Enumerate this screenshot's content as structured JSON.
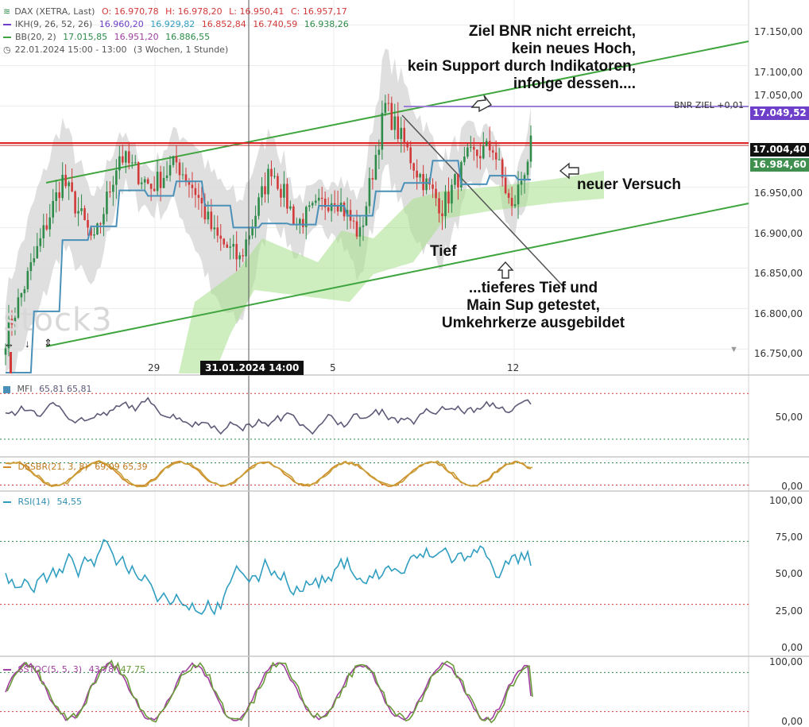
{
  "header": {
    "symbol": "DAX (XETRA, Last)",
    "ohlc": {
      "o": "O: 16.970,78",
      "h": "H: 16.978,20",
      "l": "L: 16.950,41",
      "c": "C: 16.957,17"
    },
    "ikh_label": "IKH(9, 26, 52, 26)",
    "ikh_values": [
      "16.960,20",
      "16.929,82",
      "16.852,84",
      "16.740,59",
      "16.938,26"
    ],
    "bb_label": "BB(20, 2)",
    "bb_values": [
      "17.015,85",
      "16.951,20",
      "16.886,55"
    ],
    "period": "22.01.2024 15:00 - 13:00",
    "period_detail": "(3 Wochen, 1 Stunde)"
  },
  "colors": {
    "bull": "#2e8b4a",
    "bear": "#d23a3a",
    "kijun": "#4a90b8",
    "channel": "#3fa53f",
    "bnr": "#9a7fd4",
    "bnr_tag": "#6e3fc8",
    "res": "#e02020",
    "black_tag": "#111111",
    "green_tag": "#3f8f4f",
    "mfi": "#5e5a78",
    "dssbr_fast": "#d08a28",
    "dssbr_slow": "#c9a03a",
    "rsi": "#2f9ec0",
    "sstoc_k": "#a040a0",
    "sstoc_d": "#6a9a3a"
  },
  "annotations": {
    "top": [
      "Ziel BNR nicht erreicht,",
      "kein neues Hoch,",
      "kein Support durch Indikatoren,",
      "infolge dessen...."
    ],
    "neuer_versuch": "neuer Versuch",
    "tief": "Tief",
    "bottom": [
      "...tieferes Tief und",
      "Main Sup getestet,",
      "Umkehrkerze ausgebildet"
    ],
    "watermark": "stock3"
  },
  "price_tags": {
    "bnr_label": "BNR ZIEL +0,01",
    "bnr": "17.049,52",
    "last": "17.004,40",
    "current": "16.984,60"
  },
  "x_axis": {
    "labels": [
      "29",
      "5",
      "12"
    ],
    "cursor": "31.01.2024 14:00"
  },
  "panels": {
    "mfi": {
      "label": "MFI",
      "values": "65,81  65,81"
    },
    "dssbr": {
      "label": "DSSBR(21, 3, 8)",
      "values": "69,09  65,39"
    },
    "rsi": {
      "label": "RSI(14)",
      "values": "54,55"
    },
    "sstoc": {
      "label": "SSTOC(5, 5, 3)",
      "k": "43,78",
      "d": "47,75"
    }
  },
  "axes": {
    "main": [
      "17.150,00",
      "17.100,00",
      "17.050,00",
      "16.950,00",
      "16.900,00",
      "16.850,00",
      "16.800,00",
      "16.750,00"
    ],
    "mfi": [
      "50,00"
    ],
    "dssbr": [
      "0,00"
    ],
    "rsi": [
      "100,00",
      "75,00",
      "50,00",
      "25,00",
      "0,00"
    ],
    "sstoc": [
      "100,00",
      "0,00"
    ]
  },
  "chart_data": [
    {
      "type": "candlestick",
      "title": "DAX (XETRA, Last)",
      "ylim": [
        16720,
        17175
      ],
      "y_ticks": [
        17150,
        17100,
        17050,
        16950,
        16900,
        16850,
        16800,
        16750
      ],
      "x_labels": [
        "29",
        "5",
        "12"
      ],
      "last_close": 16957.17,
      "bnr_target": 17049.52,
      "resistance": 17004.4,
      "current_price": 16984.6,
      "price_path_keypoints": [
        [
          0,
          16765
        ],
        [
          8,
          16850
        ],
        [
          18,
          16960
        ],
        [
          28,
          16880
        ],
        [
          36,
          16990
        ],
        [
          46,
          16950
        ],
        [
          54,
          16980
        ],
        [
          60,
          16945
        ],
        [
          66,
          16890
        ],
        [
          74,
          16860
        ],
        [
          84,
          16975
        ],
        [
          92,
          16905
        ],
        [
          104,
          16940
        ],
        [
          112,
          16890
        ],
        [
          120,
          17050
        ],
        [
          130,
          16970
        ],
        [
          138,
          16925
        ],
        [
          146,
          16985
        ],
        [
          154,
          17000
        ],
        [
          160,
          16920
        ],
        [
          166,
          17000
        ]
      ]
    },
    {
      "type": "line",
      "name": "MFI",
      "ylim": [
        0,
        100
      ],
      "last": 65.81,
      "reference_lines": [
        20,
        80
      ]
    },
    {
      "type": "line",
      "name": "DSSBR(21, 3, 8)",
      "ylim": [
        0,
        100
      ],
      "last": [
        69.09,
        65.39
      ]
    },
    {
      "type": "line",
      "name": "RSI(14)",
      "ylim": [
        0,
        100
      ],
      "last": 54.55,
      "reference_lines": [
        30,
        70
      ]
    },
    {
      "type": "line",
      "name": "SSTOC(5, 5, 3)",
      "ylim": [
        0,
        100
      ],
      "last": [
        43.78,
        47.75
      ],
      "reference_lines": [
        20,
        80
      ]
    }
  ]
}
